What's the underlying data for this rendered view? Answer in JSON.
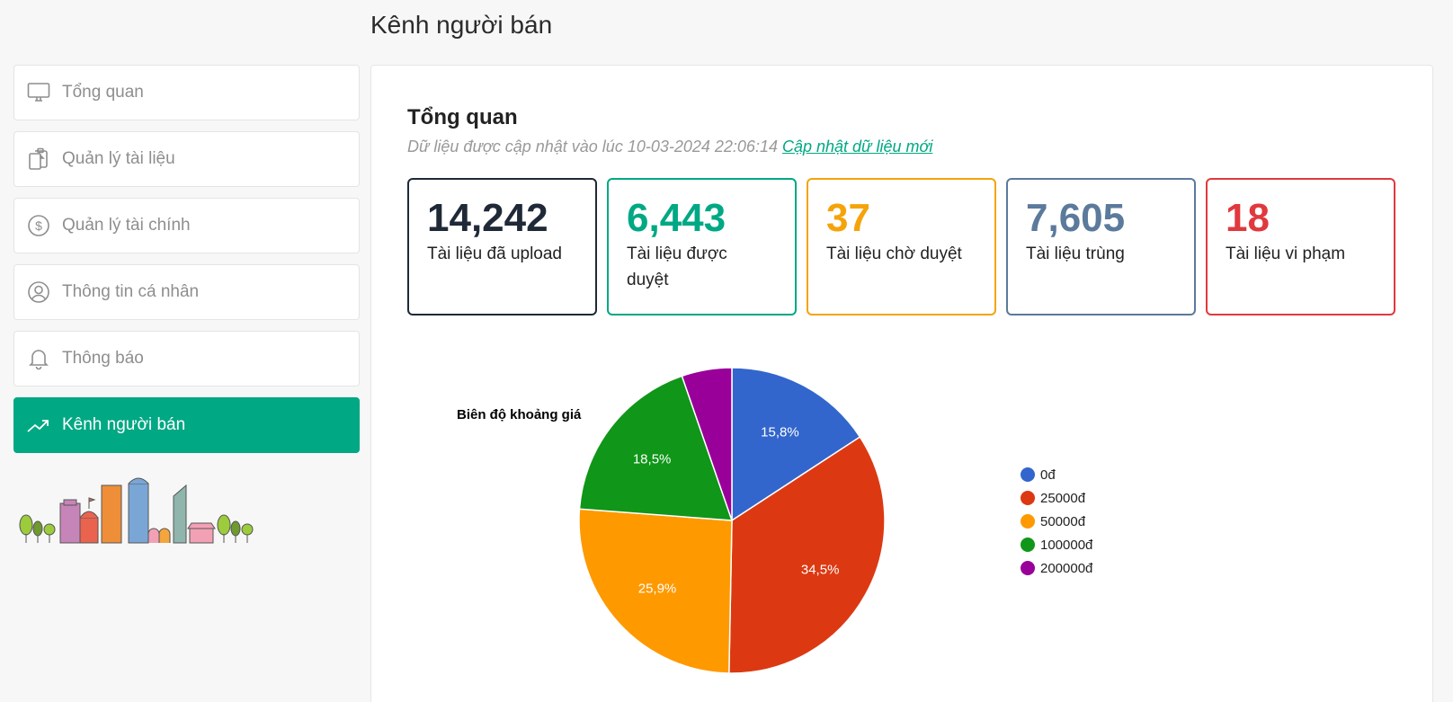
{
  "header": {
    "title": "Kênh người bán"
  },
  "sidebar": {
    "items": [
      {
        "label": "Tổng quan",
        "icon": "monitor-icon",
        "active": false
      },
      {
        "label": "Quản lý tài liệu",
        "icon": "clipboard-documents-icon",
        "active": false
      },
      {
        "label": "Quản lý tài chính",
        "icon": "dollar-circle-icon",
        "active": false
      },
      {
        "label": "Thông tin cá nhân",
        "icon": "user-circle-icon",
        "active": false
      },
      {
        "label": "Thông báo",
        "icon": "bell-icon",
        "active": false
      },
      {
        "label": "Kênh người bán",
        "icon": "trending-up-icon",
        "active": true
      }
    ],
    "illustration": "city-skyline-illustration"
  },
  "main": {
    "title": "Tổng quan",
    "update_prefix": "Dữ liệu được cập nhật vào lúc 10-03-2024 22:06:14",
    "refresh_link": "Cập nhật dữ liệu mới",
    "stats": [
      {
        "value": "14,242",
        "label": "Tài liệu đã upload",
        "color": "#1f2937"
      },
      {
        "value": "6,443",
        "label": "Tài liệu được duyệt",
        "color": "#00a884"
      },
      {
        "value": "37",
        "label": "Tài liệu chờ duyệt",
        "color": "#f5a30a"
      },
      {
        "value": "7,605",
        "label": "Tài liệu trùng",
        "color": "#5b7a9c"
      },
      {
        "value": "18",
        "label": "Tài liệu vi phạm",
        "color": "#e0393e"
      }
    ]
  },
  "chart_data": {
    "type": "pie",
    "title": "Biên độ khoảng giá",
    "categories": [
      "0đ",
      "25000đ",
      "50000đ",
      "100000đ",
      "200000đ"
    ],
    "values": [
      15.8,
      34.5,
      25.9,
      18.5,
      5.3
    ],
    "labels": [
      "15,8%",
      "34,5%",
      "25,9%",
      "18,5%",
      ""
    ],
    "colors": [
      "#3366cc",
      "#dc3912",
      "#ff9900",
      "#109618",
      "#990099"
    ],
    "legend_position": "right"
  }
}
